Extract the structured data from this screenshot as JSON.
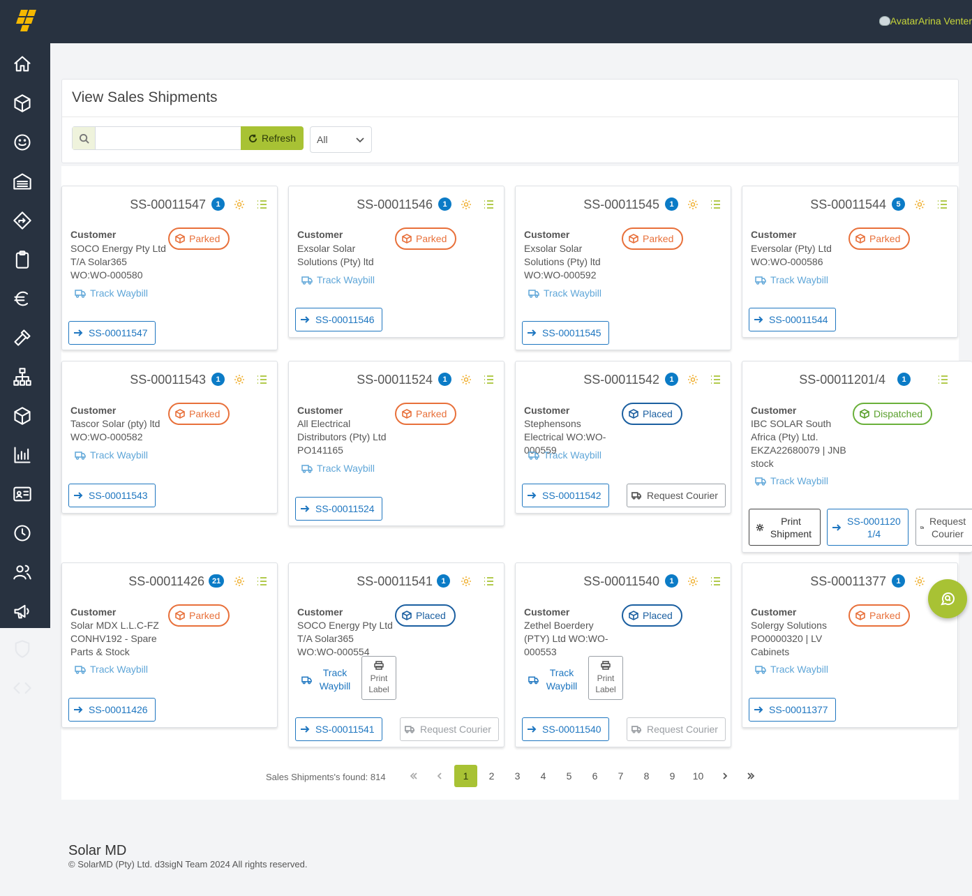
{
  "app": {
    "user": "AvatarArina Venter",
    "brand": "Solar MD",
    "copyright": "© SolarMD (Pty) Ltd. d3sigN Team 2024 All rights reserved."
  },
  "panel": {
    "title": "View Sales Shipments",
    "refresh_label": "Refresh",
    "filter_value": "All",
    "search_value": ""
  },
  "labels": {
    "customer": "Customer",
    "track_waybill": "Track Waybill",
    "request_courier": "Request Courier",
    "print_shipment": "Print Shipment",
    "print_label": "Print Label"
  },
  "cards": [
    {
      "id": "SS-00011547",
      "count": "1",
      "customer": "SOCO Energy Pty Ltd T/A Solar365 WO:WO-000580",
      "status": "Parked",
      "link": "SS-00011547"
    },
    {
      "id": "SS-00011546",
      "count": "1",
      "customer": "Exsolar Solar Solutions (Pty) ltd",
      "status": "Parked",
      "link": "SS-00011546"
    },
    {
      "id": "SS-00011545",
      "count": "1",
      "customer": "Exsolar Solar Solutions (Pty) ltd WO:WO-000592",
      "status": "Parked",
      "link": "SS-00011545"
    },
    {
      "id": "SS-00011544",
      "count": "5",
      "customer": "Eversolar (Pty) Ltd WO:WO-000586",
      "status": "Parked",
      "link": "SS-00011544"
    },
    {
      "id": "SS-00011543",
      "count": "1",
      "customer": "Tascor Solar (pty) ltd WO:WO-000582",
      "status": "Parked",
      "link": "SS-00011543"
    },
    {
      "id": "SS-00011524",
      "count": "1",
      "customer": "All Electrical Distributors (Pty) Ltd PO141165",
      "status": "Parked",
      "link": "SS-00011524"
    },
    {
      "id": "SS-00011542",
      "count": "1",
      "customer": "Stephensons Electrical WO:WO-000559",
      "status": "Placed",
      "link": "SS-00011542"
    },
    {
      "id": "SS-00011201/4",
      "count": "1",
      "customer": "IBC SOLAR South Africa (Pty) Ltd. EKZA22680079 | JNB stock",
      "status": "Dispatched",
      "link": "SS-00011201/4"
    },
    {
      "id": "SS-00011426",
      "count": "21",
      "customer": "Solar MDX L.L.C-FZ CONHV192 - Spare Parts & Stock",
      "status": "Parked",
      "link": "SS-00011426"
    },
    {
      "id": "SS-00011541",
      "count": "1",
      "customer": "SOCO Energy Pty Ltd T/A Solar365 WO:WO-000554",
      "status": "Placed",
      "link": "SS-00011541"
    },
    {
      "id": "SS-00011540",
      "count": "1",
      "customer": "Zethel Boerdery (PTY) Ltd WO:WO-000553",
      "status": "Placed",
      "link": "SS-00011540"
    },
    {
      "id": "SS-00011377",
      "count": "1",
      "customer": "Solergy Solutions PO0000320 | LV Cabinets",
      "status": "Parked",
      "link": "SS-00011377"
    }
  ],
  "pagination": {
    "found": "Sales Shipments's found: 814",
    "pages": [
      "1",
      "2",
      "3",
      "4",
      "5",
      "6",
      "7",
      "8",
      "9",
      "10"
    ],
    "current": "1"
  },
  "colors": {
    "accent": "#a8c234",
    "sidebar": "#283240",
    "parked": "#e8703a",
    "placed": "#1b5fa0",
    "dispatched": "#5aa02c",
    "badge": "#0b7bc6"
  }
}
